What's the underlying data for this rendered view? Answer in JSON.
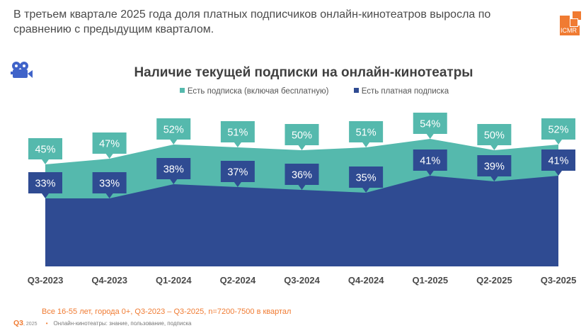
{
  "headline": "В третьем квартале 2025 года доля платных подписчиков онлайн-кинотеатров выросла по сравнению с предыдущим кварталом.",
  "logo": {
    "text": "ICMR",
    "color": "#f07b32"
  },
  "icons": {
    "section": "movie-camera-icon"
  },
  "colors": {
    "teal": "#55b9ad",
    "navy": "#2f4b92",
    "accent": "#f07b32",
    "camera": "#3f63c9"
  },
  "chart_data": {
    "type": "area",
    "title": "Наличие текущей подписки на онлайн-кинотеатры",
    "xlabel": "",
    "ylabel": "",
    "ylim": [
      0,
      60
    ],
    "grid": false,
    "legend_position": "top-center",
    "categories": [
      "Q3-2023",
      "Q4-2023",
      "Q1-2024",
      "Q2-2024",
      "Q3-2024",
      "Q4-2024",
      "Q1-2025",
      "Q2-2025",
      "Q3-2025"
    ],
    "series": [
      {
        "name": "Есть подписка (включая бесплатную)",
        "color": "#55b9ad",
        "values": [
          45,
          47,
          52,
          51,
          50,
          51,
          54,
          50,
          52
        ]
      },
      {
        "name": "Есть платная подписка",
        "color": "#2f4b92",
        "values": [
          33,
          33,
          38,
          37,
          36,
          35,
          41,
          39,
          41
        ]
      }
    ],
    "value_suffix": "%"
  },
  "footer": {
    "sample": "Все 16-55 лет, города 0+, Q3-2023 – Q3-2025, n=7200-7500 в квартал",
    "wave": "Q3",
    "wave_year": ", 2025",
    "source": "Онлайн-кинотеатры: знание, пользование, подписка"
  }
}
